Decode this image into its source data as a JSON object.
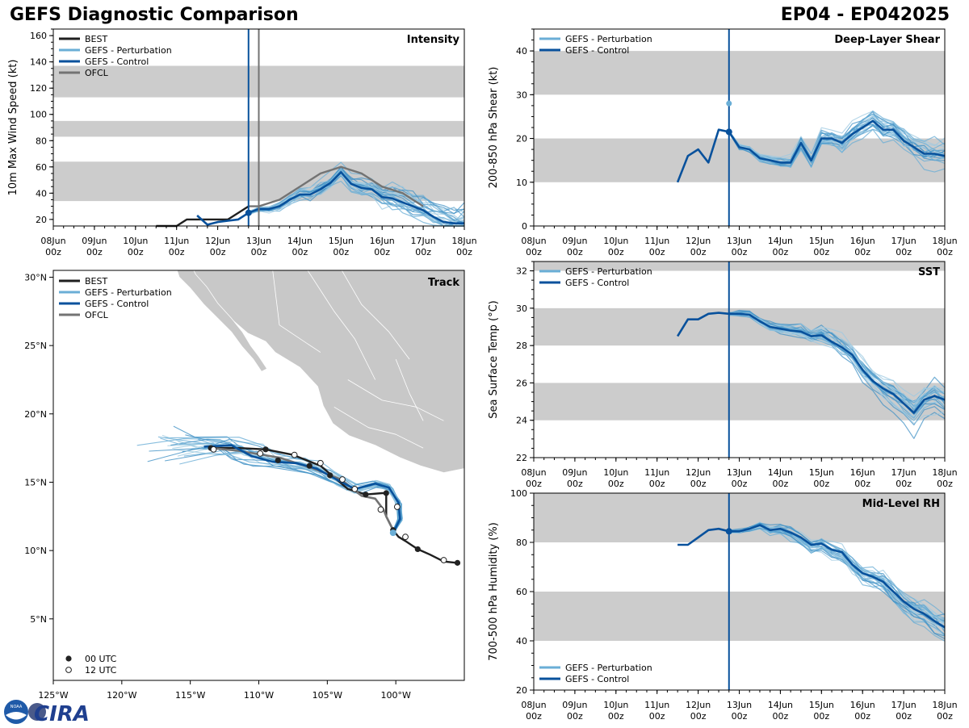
{
  "header": {
    "title": "GEFS Diagnostic Comparison",
    "storm_id": "EP04 - EP042025"
  },
  "colors": {
    "best": "#1f1f1f",
    "perturbation": "#6aaed6",
    "control": "#08519c",
    "ofcl": "#737373",
    "band": "#cccccc",
    "land": "#c8c8c8"
  },
  "legend_labels": {
    "best": "BEST",
    "perturbation": "GEFS - Perturbation",
    "control": "GEFS - Control",
    "ofcl": "OFCL",
    "utc00": "00 UTC",
    "utc12": "12 UTC"
  },
  "time_axis": {
    "date_labels": [
      "08Jun",
      "09Jun",
      "10Jun",
      "11Jun",
      "12Jun",
      "13Jun",
      "14Jun",
      "15Jun",
      "16Jun",
      "17Jun",
      "18Jun"
    ],
    "hour_label": "00z",
    "current_day": 12.75
  },
  "chart_data": [
    {
      "id": "intensity",
      "type": "line",
      "title": "Intensity",
      "ylabel": "10m Max Wind Speed (kt)",
      "xlim": [
        8,
        18
      ],
      "ylim": [
        15,
        165
      ],
      "yticks": [
        20,
        40,
        60,
        80,
        100,
        120,
        140,
        160
      ],
      "bands": [
        [
          34,
          64
        ],
        [
          83,
          95
        ],
        [
          113,
          137
        ]
      ],
      "vlines": [
        {
          "x": 12.75,
          "color": "control"
        },
        {
          "x": 13.0,
          "color": "ofcl"
        }
      ],
      "series": [
        {
          "name": "BEST",
          "role": "best",
          "x": [
            10.5,
            11.0,
            11.25,
            11.5,
            11.75,
            12.0,
            12.25,
            12.5,
            12.75
          ],
          "y": [
            15,
            15,
            20,
            20,
            20,
            20,
            20,
            25,
            30
          ]
        },
        {
          "name": "OFCL",
          "role": "ofcl",
          "x": [
            12.75,
            13.0,
            13.5,
            14.0,
            14.5,
            15.0,
            15.5,
            16.0,
            16.5,
            17.0
          ],
          "y": [
            30,
            30,
            35,
            45,
            55,
            60,
            55,
            45,
            40,
            30
          ]
        },
        {
          "name": "GEFS - Control",
          "role": "control",
          "x": [
            11.5,
            11.75,
            12.0,
            12.25,
            12.5,
            12.75,
            13.0,
            13.25,
            13.5,
            13.75,
            14.0,
            14.25,
            14.5,
            14.75,
            15.0,
            15.25,
            15.5,
            15.75,
            16.0,
            16.25,
            16.5,
            16.75,
            17.0,
            17.25,
            17.5,
            17.75,
            18.0
          ],
          "y": [
            23,
            16,
            18,
            19,
            20,
            25,
            28,
            28,
            30,
            35,
            39,
            39,
            43,
            48,
            56,
            47,
            44,
            43,
            37,
            36,
            33,
            30,
            27,
            22,
            18,
            17,
            17
          ]
        }
      ],
      "control_marker": {
        "x": 12.75,
        "y": 25
      }
    },
    {
      "id": "shear",
      "type": "line",
      "title": "Deep-Layer Shear",
      "ylabel": "200-850 hPa Shear (kt)",
      "xlim": [
        8,
        18
      ],
      "ylim": [
        0,
        45
      ],
      "yticks": [
        0,
        10,
        20,
        30,
        40
      ],
      "bands": [
        [
          10,
          20
        ],
        [
          30,
          40
        ]
      ],
      "vlines": [
        {
          "x": 12.75,
          "color": "control"
        }
      ],
      "series": [
        {
          "name": "GEFS - Control",
          "role": "control",
          "x": [
            11.5,
            11.75,
            12.0,
            12.25,
            12.5,
            12.75,
            13.0,
            13.25,
            13.5,
            13.75,
            14.0,
            14.25,
            14.5,
            14.75,
            15.0,
            15.25,
            15.5,
            15.75,
            16.0,
            16.25,
            16.5,
            16.75,
            17.0,
            17.25,
            17.5,
            17.75,
            18.0
          ],
          "y": [
            10,
            16,
            17.5,
            14.5,
            22,
            21.5,
            18,
            17.5,
            15.5,
            15,
            14.5,
            14.5,
            19,
            15,
            20,
            20,
            19,
            21,
            22.5,
            24,
            22,
            22,
            19.5,
            18,
            16.5,
            16.5,
            16
          ]
        }
      ],
      "control_marker": {
        "x": 12.75,
        "y": 21.5
      },
      "perturbation_marker": {
        "x": 12.75,
        "y": 28
      }
    },
    {
      "id": "track",
      "type": "scatter",
      "title": "Track",
      "xlim": [
        -125,
        -95
      ],
      "ylim": [
        0.5,
        30.5
      ],
      "xticks": [
        -125,
        -120,
        -115,
        -110,
        -105,
        -100
      ],
      "xtick_labels": [
        "125°W",
        "120°W",
        "115°W",
        "110°W",
        "105°W",
        "100°W"
      ],
      "yticks": [
        5,
        10,
        15,
        20,
        25,
        30
      ],
      "ytick_labels": [
        "5°N",
        "10°N",
        "15°N",
        "20°N",
        "25°N",
        "30°N"
      ],
      "best": {
        "lon": [
          -95.5,
          -96.5,
          -97.5,
          -98.4,
          -99.3,
          -99.8,
          -100.2,
          -100.7,
          -100.7,
          -101.0,
          -102.2,
          -103.5,
          -105.5,
          -107.5,
          -109.5,
          -111.5,
          -113.5
        ],
        "lat": [
          9.1,
          9.2,
          9.7,
          10.1,
          10.7,
          11.0,
          11.5,
          12.5,
          14.2,
          14.2,
          14.1,
          14.5,
          16.2,
          17.0,
          17.4,
          17.5,
          17.5
        ]
      },
      "best_00utc": {
        "lon": [
          -95.5,
          -98.4,
          -100.2,
          -100.7,
          -102.2,
          -104.8,
          -106.3,
          -108.6,
          -109.5,
          -113.5
        ],
        "lat": [
          9.1,
          10.1,
          11.5,
          14.2,
          14.1,
          15.5,
          16.2,
          16.6,
          17.4,
          17.5
        ]
      },
      "best_12utc": {
        "lon": [
          -96.5,
          -99.3,
          -99.9,
          -101.1,
          -103.0,
          -103.9,
          -105.5,
          -107.4,
          -109.9,
          -113.3
        ],
        "lat": [
          9.3,
          11.0,
          13.2,
          13.0,
          14.5,
          15.2,
          16.4,
          17.0,
          17.1,
          17.4
        ]
      },
      "ofcl": {
        "lon": [
          -100.2,
          -100.7,
          -100.9,
          -101.5,
          -102.5,
          -104.0,
          -106.0,
          -108.5,
          -111.5,
          -113.5
        ],
        "lat": [
          11.5,
          12.5,
          13.0,
          13.8,
          14.0,
          15.2,
          16.0,
          16.8,
          17.3,
          17.5
        ]
      },
      "control": {
        "lon": [
          -100.2,
          -99.7,
          -99.8,
          -100.5,
          -101.5,
          -103.0,
          -104.5,
          -105.8,
          -107.3,
          -109.0,
          -110.5,
          -112.0,
          -114.0
        ],
        "lat": [
          11.3,
          12.3,
          13.5,
          14.6,
          14.9,
          14.5,
          15.3,
          16.0,
          16.4,
          16.5,
          16.9,
          17.7,
          17.6
        ]
      },
      "control_marker": {
        "lon": -100.2,
        "lat": 11.3
      }
    },
    {
      "id": "sst",
      "type": "line",
      "title": "SST",
      "ylabel": "Sea Surface Temp (°C)",
      "xlim": [
        8,
        18
      ],
      "ylim": [
        22,
        32.5
      ],
      "yticks": [
        22,
        24,
        26,
        28,
        30,
        32
      ],
      "bands": [
        [
          24,
          26
        ],
        [
          28,
          30
        ],
        [
          32,
          32.5
        ]
      ],
      "vlines": [
        {
          "x": 12.75,
          "color": "control"
        }
      ],
      "series": [
        {
          "name": "GEFS - Control",
          "role": "control",
          "x": [
            11.5,
            11.75,
            12.0,
            12.25,
            12.5,
            12.75,
            13.0,
            13.25,
            13.5,
            13.75,
            14.0,
            14.25,
            14.5,
            14.75,
            15.0,
            15.25,
            15.5,
            15.75,
            16.0,
            16.25,
            16.5,
            16.75,
            17.0,
            17.25,
            17.5,
            17.75,
            18.0
          ],
          "y": [
            28.5,
            29.4,
            29.4,
            29.7,
            29.75,
            29.7,
            29.7,
            29.65,
            29.3,
            29.0,
            28.9,
            28.8,
            28.75,
            28.5,
            28.55,
            28.2,
            27.9,
            27.5,
            26.7,
            26.1,
            25.7,
            25.4,
            24.9,
            24.4,
            25.1,
            25.3,
            25.1
          ]
        }
      ]
    },
    {
      "id": "rh",
      "type": "line",
      "title": "Mid-Level RH",
      "ylabel": "700-500 hPa Humidity (%)",
      "xlim": [
        8,
        18
      ],
      "ylim": [
        20,
        100
      ],
      "yticks": [
        20,
        40,
        60,
        80,
        100
      ],
      "bands": [
        [
          40,
          60
        ],
        [
          80,
          100
        ]
      ],
      "vlines": [
        {
          "x": 12.75,
          "color": "control"
        }
      ],
      "series": [
        {
          "name": "GEFS - Control",
          "role": "control",
          "x": [
            11.5,
            11.75,
            12.0,
            12.25,
            12.5,
            12.75,
            13.0,
            13.25,
            13.5,
            13.75,
            14.0,
            14.25,
            14.5,
            14.75,
            15.0,
            15.25,
            15.5,
            15.75,
            16.0,
            16.25,
            16.5,
            16.75,
            17.0,
            17.25,
            17.5,
            17.75,
            18.0
          ],
          "y": [
            79,
            79,
            82,
            85,
            85.5,
            84.5,
            84.5,
            85.5,
            87,
            85,
            85.5,
            84,
            82,
            79,
            79.5,
            77,
            76,
            71,
            67.5,
            66,
            64,
            60,
            56,
            53,
            51,
            48,
            45.5
          ]
        }
      ],
      "control_marker": {
        "x": 12.75,
        "y": 84.5
      }
    }
  ],
  "logos": {
    "noaa": "NOAA",
    "cira": "CIRA"
  }
}
